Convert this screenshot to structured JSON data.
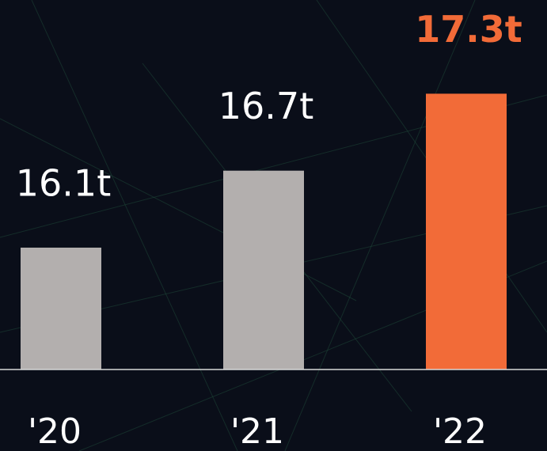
{
  "chart_data": {
    "type": "bar",
    "categories": [
      "'20",
      "'21",
      "'22"
    ],
    "values": [
      16.1,
      16.7,
      17.3
    ],
    "value_labels": [
      "16.1t",
      "16.7t",
      "17.3t"
    ],
    "colors": [
      "#b3afae",
      "#b3afae",
      "#f26b38"
    ],
    "label_colors": [
      "#ffffff",
      "#ffffff",
      "#f26b38"
    ],
    "ylim": [
      15.15,
      17.5
    ]
  }
}
